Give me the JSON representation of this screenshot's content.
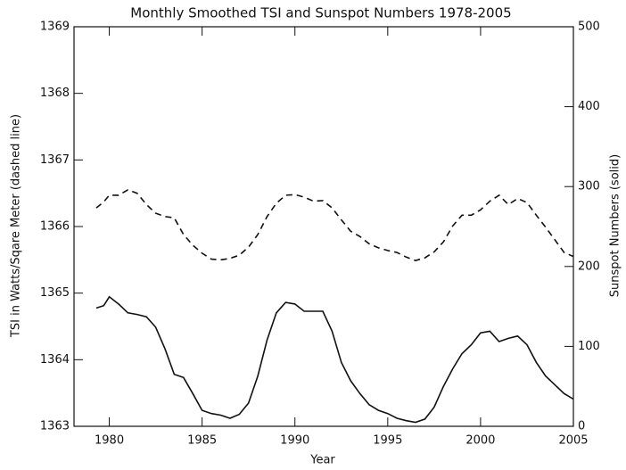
{
  "chart_data": {
    "type": "line",
    "title": "Monthly Smoothed TSI and Sunspot Numbers 1978-2005",
    "x_label": "Year",
    "y_label": "TSI in Watts/Sqare Meter (dashed line)",
    "y2_label": "Sunspot Numbers (solid)",
    "x": [
      1979.3,
      1979.7,
      1980,
      1980.5,
      1981,
      1981.5,
      1982,
      1982.5,
      1983,
      1983.5,
      1984,
      1984.5,
      1985,
      1985.5,
      1986,
      1986.5,
      1987,
      1987.5,
      1988,
      1988.5,
      1989,
      1989.5,
      1990,
      1990.5,
      1991,
      1991.5,
      1992,
      1992.5,
      1993,
      1993.5,
      1994,
      1994.5,
      1995,
      1995.5,
      1996,
      1996.5,
      1997,
      1997.5,
      1998,
      1998.5,
      1999,
      1999.5,
      2000,
      2000.5,
      2001,
      2001.5,
      2002,
      2002.5,
      2003,
      2003.5,
      2004,
      2004.5,
      2005
    ],
    "series": [
      {
        "name": "TSI",
        "color": "#111111",
        "dashed": true,
        "axis": "y",
        "values": [
          1366.28,
          1366.37,
          1366.47,
          1366.47,
          1366.55,
          1366.5,
          1366.33,
          1366.2,
          1366.15,
          1366.13,
          1365.88,
          1365.72,
          1365.6,
          1365.51,
          1365.5,
          1365.52,
          1365.57,
          1365.69,
          1365.88,
          1366.15,
          1366.35,
          1366.47,
          1366.48,
          1366.44,
          1366.38,
          1366.39,
          1366.28,
          1366.1,
          1365.93,
          1365.85,
          1365.74,
          1365.68,
          1365.64,
          1365.61,
          1365.54,
          1365.49,
          1365.53,
          1365.62,
          1365.77,
          1366.01,
          1366.17,
          1366.17,
          1366.25,
          1366.38,
          1366.47,
          1366.33,
          1366.42,
          1366.36,
          1366.17,
          1365.99,
          1365.8,
          1365.61,
          1365.55
        ]
      },
      {
        "name": "Sunspot Numbers",
        "color": "#111111",
        "dashed": false,
        "axis": "y2",
        "values": [
          148,
          151,
          162,
          153,
          142,
          140,
          137,
          124,
          97,
          65,
          61,
          41,
          20,
          16,
          14,
          10,
          15,
          29,
          63,
          108,
          142,
          155,
          153,
          144,
          144,
          144,
          119,
          80,
          57,
          41,
          27,
          20,
          16,
          10,
          7,
          5,
          9,
          24,
          50,
          72,
          91,
          102,
          117,
          119,
          106,
          110,
          113,
          102,
          80,
          63,
          52,
          41,
          34
        ]
      }
    ],
    "xlim": [
      1978.1,
      2005
    ],
    "xticks": [
      1980,
      1985,
      1990,
      1995,
      2000,
      2005
    ],
    "ylim": [
      1363,
      1369
    ],
    "yticks": [
      1363,
      1364,
      1365,
      1366,
      1367,
      1368,
      1369
    ],
    "y2lim": [
      0,
      500
    ],
    "y2ticks": [
      0,
      100,
      200,
      300,
      400,
      500
    ]
  }
}
